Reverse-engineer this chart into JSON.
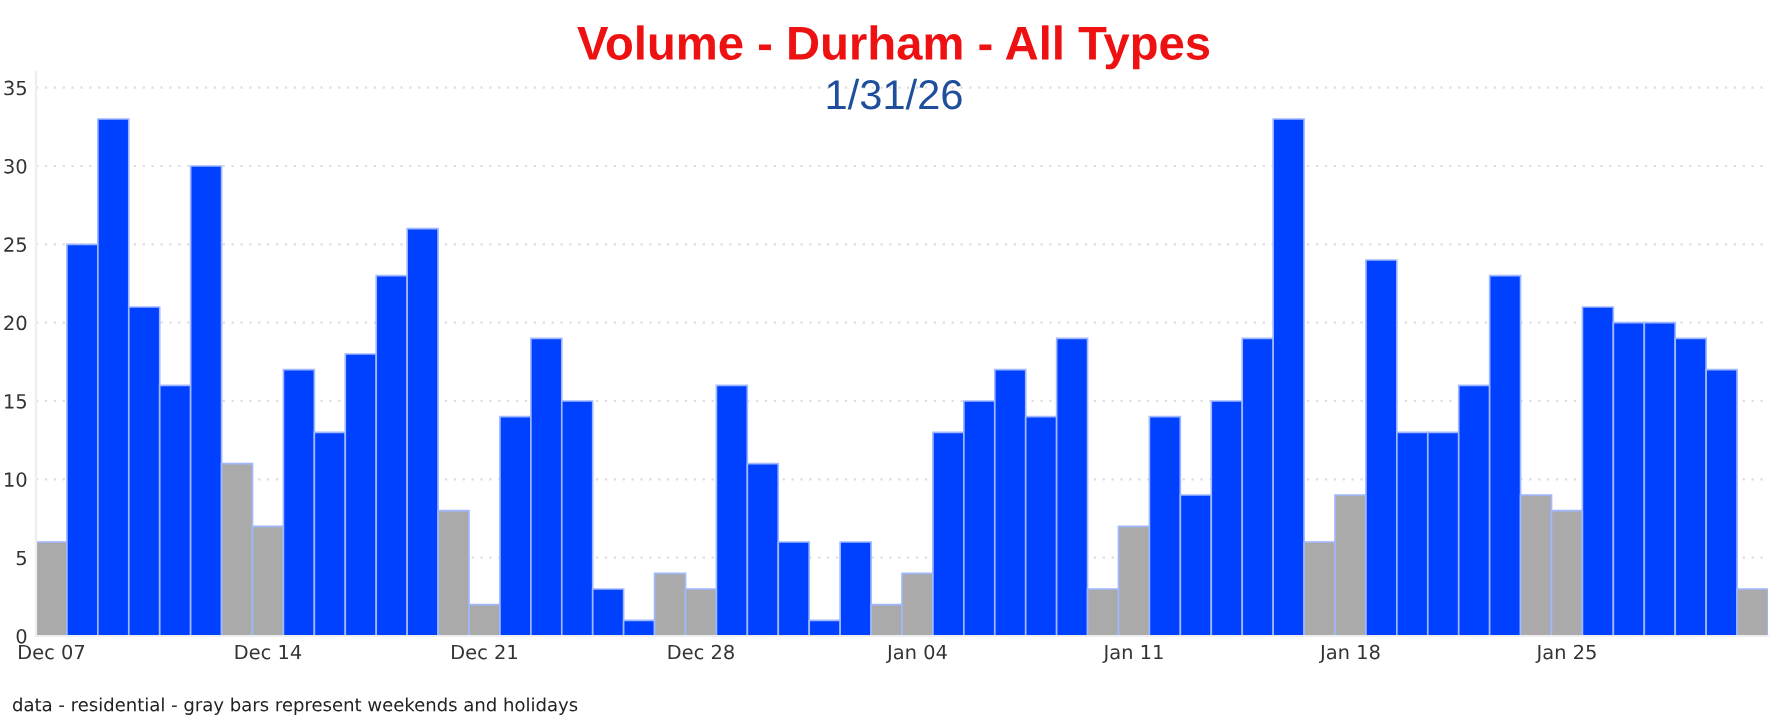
{
  "chart_data": {
    "type": "bar",
    "title": "Volume - Durham - All Types",
    "subtitle": "1/31/26",
    "categories": [
      "Dec 07",
      null,
      null,
      null,
      null,
      null,
      null,
      "Dec 14",
      null,
      null,
      null,
      null,
      null,
      null,
      "Dec 21",
      null,
      null,
      null,
      null,
      null,
      null,
      "Dec 28",
      null,
      null,
      null,
      null,
      null,
      null,
      "Jan 04",
      null,
      null,
      null,
      null,
      null,
      null,
      "Jan 11",
      null,
      null,
      null,
      null,
      null,
      null,
      "Jan 18",
      null,
      null,
      null,
      null,
      null,
      null,
      "Jan 25",
      null,
      null,
      null,
      null,
      null,
      null
    ],
    "values": [
      6,
      25,
      33,
      21,
      16,
      30,
      11,
      7,
      17,
      13,
      18,
      23,
      26,
      8,
      2,
      14,
      19,
      15,
      3,
      1,
      4,
      3,
      16,
      11,
      6,
      1,
      6,
      2,
      4,
      13,
      15,
      17,
      14,
      19,
      3,
      7,
      14,
      9,
      15,
      19,
      33,
      6,
      9,
      24,
      13,
      13,
      16,
      23,
      9,
      8,
      21,
      20,
      20,
      19,
      17,
      3
    ],
    "colors": [
      "#aaaaaa",
      "#0040ff",
      "#0040ff",
      "#0040ff",
      "#0040ff",
      "#0040ff",
      "#aaaaaa",
      "#aaaaaa",
      "#0040ff",
      "#0040ff",
      "#0040ff",
      "#0040ff",
      "#0040ff",
      "#aaaaaa",
      "#aaaaaa",
      "#0040ff",
      "#0040ff",
      "#0040ff",
      "#0040ff",
      "#0040ff",
      "#aaaaaa",
      "#aaaaaa",
      "#0040ff",
      "#0040ff",
      "#0040ff",
      "#0040ff",
      "#0040ff",
      "#aaaaaa",
      "#aaaaaa",
      "#0040ff",
      "#0040ff",
      "#0040ff",
      "#0040ff",
      "#0040ff",
      "#aaaaaa",
      "#aaaaaa",
      "#0040ff",
      "#0040ff",
      "#0040ff",
      "#0040ff",
      "#0040ff",
      "#aaaaaa",
      "#aaaaaa",
      "#0040ff",
      "#0040ff",
      "#0040ff",
      "#0040ff",
      "#0040ff",
      "#aaaaaa",
      "#aaaaaa",
      "#0040ff",
      "#0040ff",
      "#0040ff",
      "#0040ff",
      "#0040ff",
      "#aaaaaa"
    ],
    "ylim": [
      0,
      36
    ],
    "yticks": [
      0,
      5,
      10,
      15,
      20,
      25,
      30,
      35
    ],
    "grid": "y",
    "annotations": [
      "data - residential - gray bars represent weekends and holidays"
    ]
  }
}
